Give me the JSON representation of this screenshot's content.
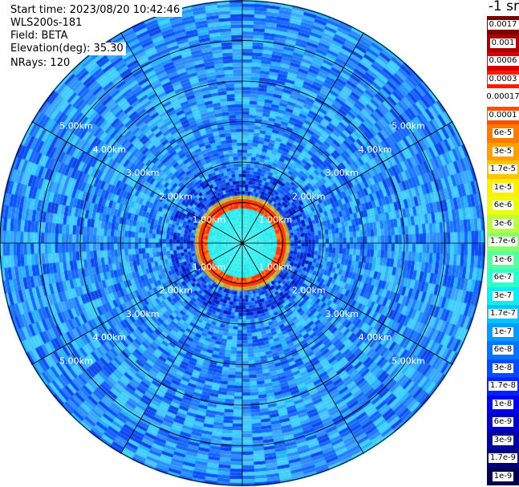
{
  "info": {
    "start_time": "Start time: 2023/08/20 10:42:46",
    "instrument": "WLS200s-181",
    "field": "Field: BETA",
    "elevation": "Elevation(deg): 35.30",
    "nrays": "NRays: 120"
  },
  "unit_label": "-1 sr",
  "range_rings": {
    "labels": [
      "1.00km",
      "2.00km",
      "3.00km",
      "4.00km",
      "5.00km"
    ],
    "max_range_km": 6.0
  },
  "radial_spokes": 12,
  "colorbar": {
    "levels": [
      {
        "label": "0.0017",
        "color": "#7a0000"
      },
      {
        "label": "0.001",
        "color": "#a80000"
      },
      {
        "label": "0.0006",
        "color": "#d80000"
      },
      {
        "label": "0.0003",
        "color": "#ff1a00"
      },
      {
        "label": "0.00017",
        "color": "#ffffff"
      },
      {
        "label": "0.0001",
        "color": "#ff4e00"
      },
      {
        "label": "6e-5",
        "color": "#ff7a00"
      },
      {
        "label": "3e-5",
        "color": "#ffa000"
      },
      {
        "label": "1.7e-5",
        "color": "#ffc400"
      },
      {
        "label": "1e-5",
        "color": "#ffee00"
      },
      {
        "label": "6e-6",
        "color": "#e8ff10"
      },
      {
        "label": "3e-6",
        "color": "#b8ff40"
      },
      {
        "label": "1.7e-6",
        "color": "#86ff70"
      },
      {
        "label": "1e-6",
        "color": "#56ffa0"
      },
      {
        "label": "6e-7",
        "color": "#2cffd0"
      },
      {
        "label": "3e-7",
        "color": "#10ecf0"
      },
      {
        "label": "1.7e-7",
        "color": "#00c4ff"
      },
      {
        "label": "1e-7",
        "color": "#009cff"
      },
      {
        "label": "6e-8",
        "color": "#0074ff"
      },
      {
        "label": "3e-8",
        "color": "#004cff"
      },
      {
        "label": "1.7e-8",
        "color": "#0024ff"
      },
      {
        "label": "1e-8",
        "color": "#0000f0"
      },
      {
        "label": "6e-9",
        "color": "#0000c8"
      },
      {
        "label": "3e-9",
        "color": "#0000a0"
      },
      {
        "label": "1.7e-9",
        "color": "#000078"
      },
      {
        "label": "1e-9",
        "color": "#000050"
      }
    ]
  }
}
